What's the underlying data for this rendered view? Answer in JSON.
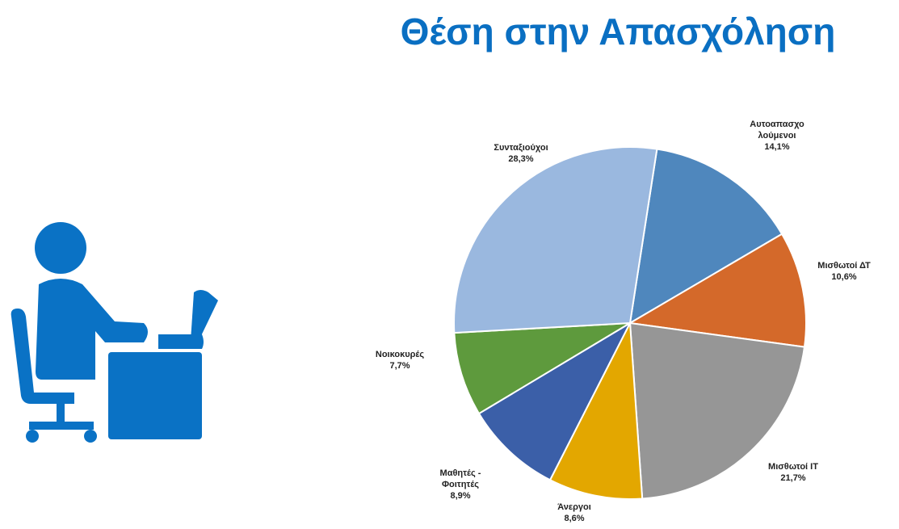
{
  "chart_data": {
    "type": "pie",
    "title": "Θέση στην Απασχόληση",
    "categories": [
      "Αυτοαπασχο\nλούμενοι",
      "Μισθωτοί ΔΤ",
      "Μισθωτοί ΙΤ",
      "Άνεργοι",
      "Μαθητές -\nΦοιτητές",
      "Νοικοκυρές",
      "Συνταξιούχοι"
    ],
    "values": [
      14.1,
      10.6,
      21.7,
      8.6,
      8.9,
      7.7,
      28.3
    ],
    "value_labels": [
      "14,1%",
      "10,6%",
      "21,7%",
      "8,6%",
      "8,9%",
      "7,7%",
      "28,3%"
    ],
    "colors": [
      "#4f87bd",
      "#d4692a",
      "#969696",
      "#e3a700",
      "#3b5fa8",
      "#5e9a3d",
      "#9ab8df"
    ]
  }
}
